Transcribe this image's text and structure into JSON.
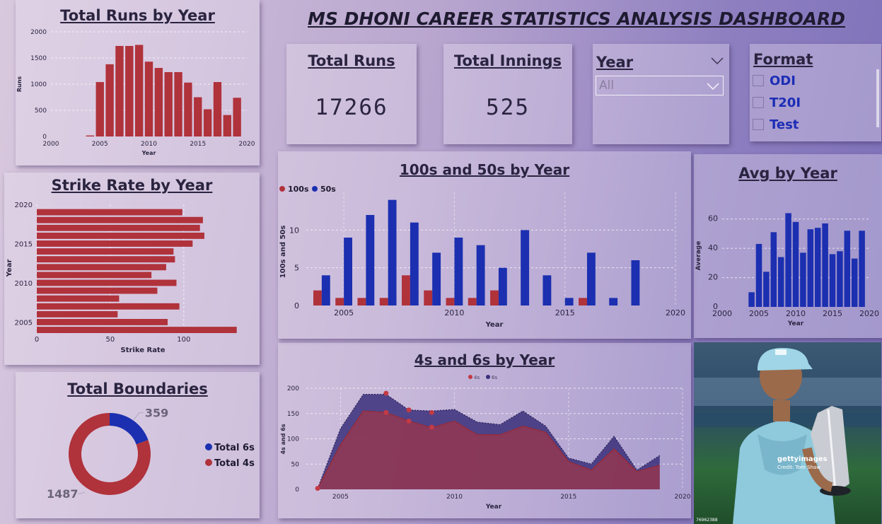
{
  "dashboard": {
    "title": "MS DHONI CAREER STATISTICS ANALYSIS DASHBOARD"
  },
  "kpis": {
    "total_runs": {
      "label": "Total Runs",
      "value": "17266"
    },
    "total_innings": {
      "label": "Total Innings",
      "value": "525"
    }
  },
  "year_slicer": {
    "label": "Year",
    "selected": "All"
  },
  "format_slicer": {
    "label": "Format",
    "options": [
      "ODI",
      "T20I",
      "Test"
    ]
  },
  "photo": {
    "watermark": "gettyimages",
    "credit": "Credit: Tom Shaw",
    "id": "76962388"
  },
  "colors": {
    "red": "#b0323b",
    "blue": "#1b2fb0",
    "title": "#2a2440"
  },
  "chart_data": [
    {
      "id": "runs_by_year",
      "type": "bar",
      "title": "Total Runs by Year",
      "xlabel": "Year",
      "ylabel": "Runs",
      "x": [
        2004,
        2005,
        2006,
        2007,
        2008,
        2009,
        2010,
        2011,
        2012,
        2013,
        2014,
        2015,
        2016,
        2017,
        2018,
        2019
      ],
      "values": [
        19,
        1040,
        1380,
        1730,
        1730,
        1750,
        1430,
        1310,
        1230,
        1230,
        1030,
        750,
        520,
        1040,
        410,
        740
      ],
      "xlim": [
        2000,
        2020
      ],
      "ylim": [
        0,
        2000
      ],
      "xticks": [
        2000,
        2005,
        2010,
        2015,
        2020
      ],
      "yticks": [
        0,
        500,
        1000,
        1500,
        2000
      ],
      "grid": true
    },
    {
      "id": "strike_rate_by_year",
      "type": "bar",
      "orientation": "horizontal",
      "title": "Strike Rate by Year",
      "xlabel": "Strike Rate",
      "ylabel": "Year",
      "y": [
        2004,
        2005,
        2006,
        2007,
        2008,
        2009,
        2010,
        2011,
        2012,
        2013,
        2014,
        2015,
        2016,
        2017,
        2018,
        2019
      ],
      "values": [
        136,
        89,
        55,
        97,
        56,
        82,
        95,
        78,
        88,
        94,
        93,
        106,
        114,
        111,
        113,
        99
      ],
      "xlim": [
        0,
        140
      ],
      "ylim": [
        2004,
        2020
      ],
      "xticks": [
        0,
        50,
        100
      ],
      "yticks": [
        2005,
        2010,
        2015,
        2020
      ],
      "grid": true
    },
    {
      "id": "total_boundaries",
      "type": "pie",
      "style": "donut",
      "title": "Total Boundaries",
      "labels": [
        "Total 6s",
        "Total 4s"
      ],
      "values": [
        359,
        1487
      ],
      "colors": [
        "#1b2fb0",
        "#b0323b"
      ],
      "legend": "right"
    },
    {
      "id": "hundreds_fifties_by_year",
      "type": "bar",
      "title": "100s and 50s by Year",
      "xlabel": "Year",
      "ylabel": "100s and 50s",
      "x": [
        2004,
        2005,
        2006,
        2007,
        2008,
        2009,
        2010,
        2011,
        2012,
        2013,
        2014,
        2015,
        2016,
        2017,
        2018,
        2019
      ],
      "series": [
        {
          "name": "100s",
          "color": "#b0323b",
          "values": [
            2,
            1,
            1,
            1,
            4,
            2,
            1,
            1,
            2,
            0,
            0,
            0,
            1,
            0,
            0,
            0
          ]
        },
        {
          "name": "50s",
          "color": "#1b2fb0",
          "values": [
            4,
            9,
            12,
            14,
            11,
            7,
            9,
            8,
            5,
            10,
            4,
            1,
            7,
            1,
            6,
            0
          ]
        }
      ],
      "xlim": [
        2003.3,
        2020
      ],
      "ylim": [
        0,
        15
      ],
      "xticks": [
        2005,
        2010,
        2015,
        2020
      ],
      "yticks": [
        0,
        5,
        10
      ],
      "grid": true,
      "legend": "top-left"
    },
    {
      "id": "avg_by_year",
      "type": "bar",
      "title": "Avg by Year",
      "xlabel": "Year",
      "ylabel": "Average",
      "x": [
        2004,
        2005,
        2006,
        2007,
        2008,
        2009,
        2010,
        2011,
        2012,
        2013,
        2014,
        2015,
        2016,
        2017,
        2018,
        2019
      ],
      "values": [
        10,
        43,
        24,
        51,
        34,
        64,
        58,
        37,
        53,
        54,
        57,
        36,
        38,
        52,
        33,
        52
      ],
      "xlim": [
        2000,
        2020
      ],
      "ylim": [
        0,
        70
      ],
      "xticks": [
        2000,
        2005,
        2010,
        2015,
        2020
      ],
      "yticks": [
        0,
        20,
        40,
        60
      ],
      "grid": true
    },
    {
      "id": "fours_sixes_by_year",
      "type": "area",
      "title": "4s and 6s by Year",
      "xlabel": "Year",
      "ylabel": "4s and 6s",
      "x": [
        2004,
        2005,
        2006,
        2007,
        2008,
        2009,
        2010,
        2011,
        2012,
        2013,
        2014,
        2015,
        2016,
        2017,
        2018,
        2019
      ],
      "series": [
        {
          "name": "4s",
          "color": "#b0323b",
          "values": [
            2,
            88,
            155,
            152,
            135,
            122,
            135,
            108,
            108,
            125,
            113,
            55,
            38,
            80,
            35,
            48
          ]
        },
        {
          "name": "6s",
          "color": "#3a2f7a",
          "values": [
            2,
            120,
            188,
            188,
            157,
            155,
            158,
            133,
            128,
            155,
            125,
            62,
            50,
            105,
            38,
            67
          ]
        }
      ],
      "markers": [
        {
          "x": 2007,
          "y": 190
        },
        {
          "x": 2007,
          "y": 152
        },
        {
          "x": 2008,
          "y": 157
        },
        {
          "x": 2008,
          "y": 135
        },
        {
          "x": 2009,
          "y": 152
        },
        {
          "x": 2009,
          "y": 123
        },
        {
          "x": 2004,
          "y": 2
        }
      ],
      "xlim": [
        2003.5,
        2020
      ],
      "ylim": [
        0,
        200
      ],
      "xticks": [
        2005,
        2010,
        2015,
        2020
      ],
      "yticks": [
        0,
        50,
        100,
        150,
        200
      ],
      "grid": true,
      "legend": "top-center"
    }
  ]
}
